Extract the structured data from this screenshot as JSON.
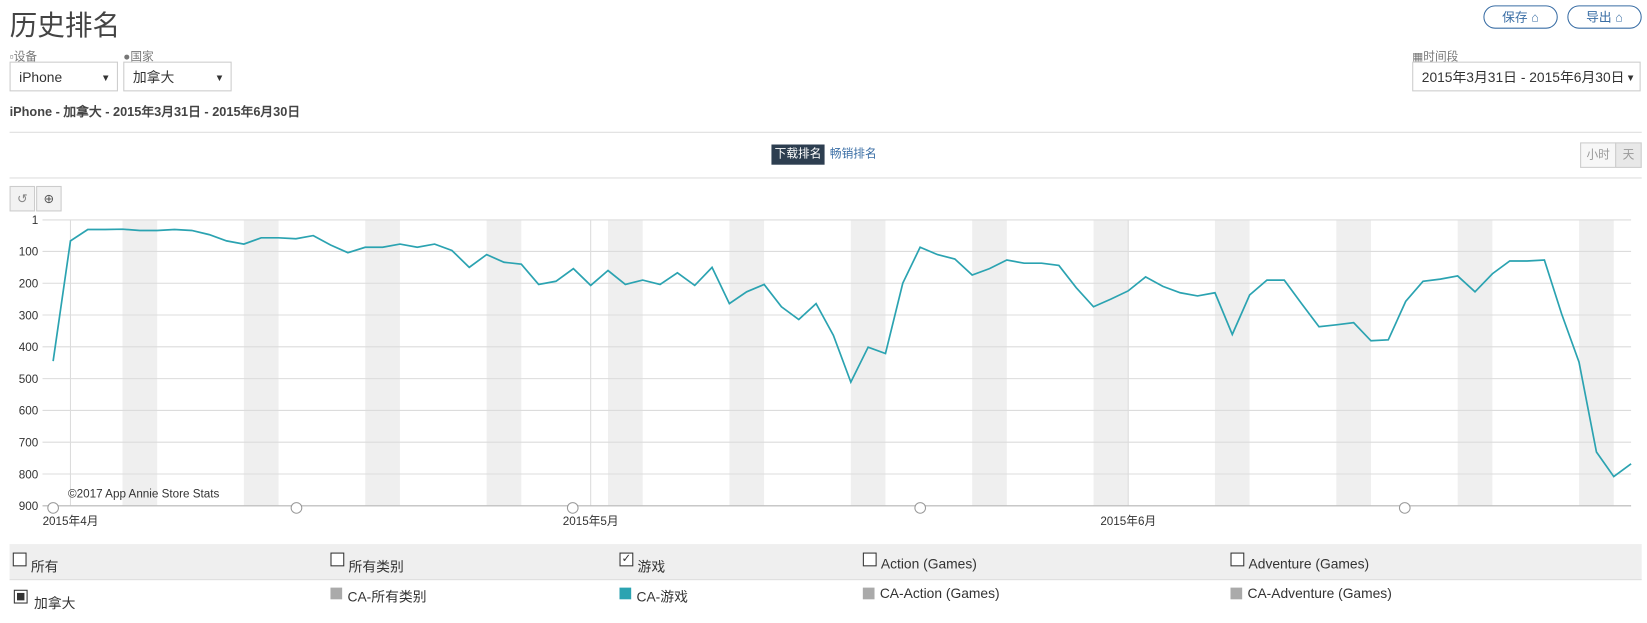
{
  "header": {
    "title": "历史排名",
    "buttons": [
      "保存",
      "导出"
    ]
  },
  "filters": {
    "device_label": "设备",
    "device": "iPhone",
    "country_label": "国家",
    "country": "加拿大",
    "period_label": "时间段",
    "period": "2015年3月31日 - 2015年6月30日"
  },
  "summary": "iPhone - 加拿大 - 2015年3月31日 - 2015年6月30日",
  "tabs": [
    "下载排名",
    "畅销排名"
  ],
  "granularity": [
    "小时",
    "天"
  ],
  "chart_data": {
    "type": "line",
    "inverted": true,
    "grid": true,
    "annotation": "©2017 App Annie Store Stats",
    "ylim": [
      1,
      900
    ],
    "yticks": [
      1,
      100,
      200,
      300,
      400,
      500,
      600,
      700,
      800,
      900
    ],
    "xlim": [
      "2015-03-31",
      "2015-06-30"
    ],
    "xticks": [
      {
        "value": "2015-04-01",
        "label": "2015年4月"
      },
      {
        "value": "2015-05-01",
        "label": "2015年5月"
      },
      {
        "value": "2015-06-01",
        "label": "2015年6月"
      }
    ],
    "x": [
      "2015-03-31",
      "2015-04-01",
      "2015-04-02",
      "2015-04-03",
      "2015-04-04",
      "2015-04-05",
      "2015-04-06",
      "2015-04-07",
      "2015-04-08",
      "2015-04-09",
      "2015-04-10",
      "2015-04-11",
      "2015-04-12",
      "2015-04-13",
      "2015-04-14",
      "2015-04-15",
      "2015-04-16",
      "2015-04-17",
      "2015-04-18",
      "2015-04-19",
      "2015-04-20",
      "2015-04-21",
      "2015-04-22",
      "2015-04-23",
      "2015-04-24",
      "2015-04-25",
      "2015-04-26",
      "2015-04-27",
      "2015-04-28",
      "2015-04-29",
      "2015-04-30",
      "2015-05-01",
      "2015-05-02",
      "2015-05-03",
      "2015-05-04",
      "2015-05-05",
      "2015-05-06",
      "2015-05-07",
      "2015-05-08",
      "2015-05-09",
      "2015-05-10",
      "2015-05-11",
      "2015-05-12",
      "2015-05-13",
      "2015-05-14",
      "2015-05-15",
      "2015-05-16",
      "2015-05-17",
      "2015-05-18",
      "2015-05-19",
      "2015-05-20",
      "2015-05-21",
      "2015-05-22",
      "2015-05-23",
      "2015-05-24",
      "2015-05-25",
      "2015-05-26",
      "2015-05-27",
      "2015-05-28",
      "2015-05-29",
      "2015-05-30",
      "2015-05-31",
      "2015-06-01",
      "2015-06-02",
      "2015-06-03",
      "2015-06-04",
      "2015-06-05",
      "2015-06-06",
      "2015-06-07",
      "2015-06-08",
      "2015-06-09",
      "2015-06-10",
      "2015-06-11",
      "2015-06-12",
      "2015-06-13",
      "2015-06-14",
      "2015-06-15",
      "2015-06-16",
      "2015-06-17",
      "2015-06-18",
      "2015-06-19",
      "2015-06-20",
      "2015-06-21",
      "2015-06-22",
      "2015-06-23",
      "2015-06-24",
      "2015-06-25",
      "2015-06-26",
      "2015-06-27",
      "2015-06-28",
      "2015-06-29",
      "2015-06-30"
    ],
    "series": [
      {
        "name": "CA-游戏",
        "color": "#2ba3b1",
        "values": [
          445,
          67,
          31,
          31,
          30,
          34,
          34,
          31,
          34,
          47,
          67,
          77,
          57,
          57,
          60,
          50,
          80,
          104,
          87,
          87,
          77,
          87,
          77,
          97,
          150,
          110,
          134,
          140,
          204,
          194,
          154,
          207,
          160,
          204,
          190,
          204,
          167,
          207,
          150,
          264,
          227,
          204,
          274,
          314,
          264,
          364,
          511,
          401,
          421,
          200,
          87,
          110,
          124,
          174,
          154,
          127,
          137,
          137,
          144,
          214,
          274,
          250,
          224,
          180,
          210,
          230,
          240,
          230,
          361,
          237,
          190,
          190,
          264,
          337,
          331,
          324,
          381,
          378,
          257,
          194,
          187,
          177,
          227,
          170,
          130,
          130,
          127,
          297,
          448,
          731,
          808,
          768
        ]
      }
    ]
  },
  "legend_table": {
    "filters": [
      {
        "label": "所有",
        "checked": false
      },
      {
        "label": "所有类别",
        "checked": false
      },
      {
        "label": "游戏",
        "checked": true
      },
      {
        "label": "Action (Games)",
        "checked": false
      },
      {
        "label": "Adventure (Games)",
        "checked": false
      }
    ],
    "country": {
      "label": "加拿大",
      "checked": true
    },
    "other_series": [
      {
        "name": "CA-所有类别",
        "color": "#aaaaaa"
      },
      {
        "name": "CA-Action (Games)",
        "color": "#aaaaaa"
      },
      {
        "name": "CA-Adventure (Games)",
        "color": "#aaaaaa"
      }
    ]
  }
}
